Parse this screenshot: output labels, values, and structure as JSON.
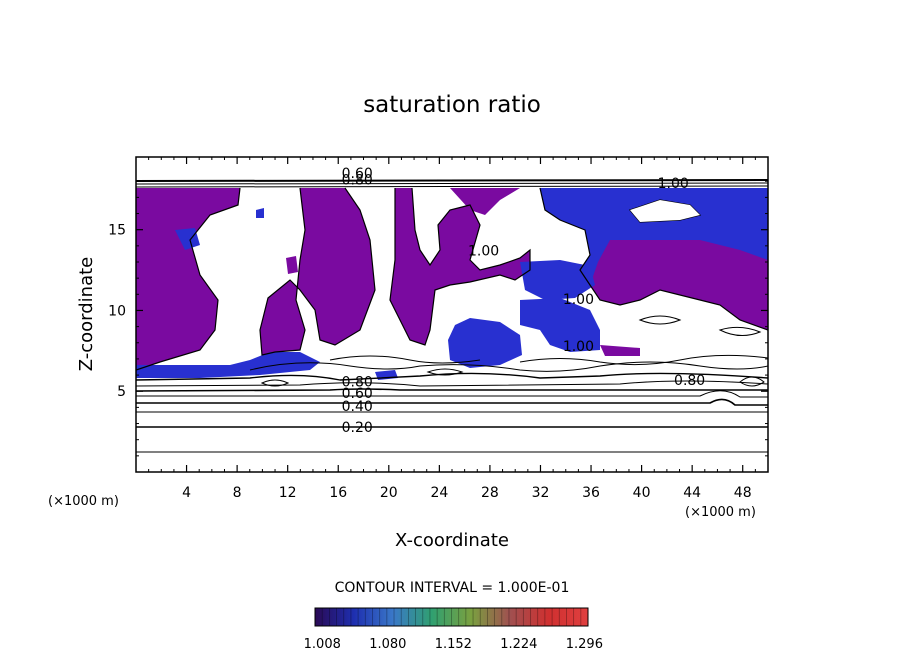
{
  "chart_data": {
    "type": "heatmap",
    "title": "saturation ratio",
    "xlabel": "X-coordinate",
    "ylabel": "Z-coordinate",
    "x_unit_left": "(×1000 m)",
    "x_unit_right": "(×1000 m)",
    "xlim": [
      0,
      50
    ],
    "ylim": [
      0,
      19.5
    ],
    "xticks": [
      4,
      8,
      12,
      16,
      20,
      24,
      28,
      32,
      36,
      40,
      44,
      48
    ],
    "xtick_labels": [
      "4",
      "8",
      "12",
      "16",
      "20",
      "24",
      "28",
      "32",
      "36",
      "40",
      "44",
      "48"
    ],
    "yticks": [
      5,
      10,
      15
    ],
    "ytick_labels": [
      "5",
      "10",
      "15"
    ],
    "contour_interval_text": "CONTOUR INTERVAL = 1.000E-01",
    "contour_labels": [
      {
        "text": "0.20",
        "x": 17.5,
        "z": 2.8
      },
      {
        "text": "0.40",
        "x": 17.5,
        "z": 4.1
      },
      {
        "text": "0.60",
        "x": 17.5,
        "z": 4.9
      },
      {
        "text": "0.80",
        "x": 17.5,
        "z": 5.6
      },
      {
        "text": "0.80",
        "x": 43.8,
        "z": 5.7
      },
      {
        "text": "0.60",
        "x": 17.5,
        "z": 18.5
      },
      {
        "text": "0.80",
        "x": 17.5,
        "z": 18.1
      },
      {
        "text": "1.00",
        "x": 27.5,
        "z": 13.7
      },
      {
        "text": "1.00",
        "x": 42.5,
        "z": 17.9
      },
      {
        "text": "1.00",
        "x": 35.0,
        "z": 10.7
      },
      {
        "text": "1.00",
        "x": 35.0,
        "z": 7.8
      }
    ],
    "colorbar": {
      "ticks": [
        1.008,
        1.08,
        1.152,
        1.224,
        1.296
      ],
      "tick_labels": [
        "1.008",
        "1.080",
        "1.152",
        "1.224",
        "1.296"
      ],
      "range": [
        1.0,
        1.3
      ],
      "colors": [
        "#2a0a55",
        "#1e2fb0",
        "#3a78c8",
        "#30a070",
        "#7aa040",
        "#a05050",
        "#d03030",
        "#e04040"
      ]
    },
    "fill_colors": {
      "purple": "#7a0aa0",
      "blue": "#2830d0",
      "light_blue": "#3a70e0"
    }
  }
}
